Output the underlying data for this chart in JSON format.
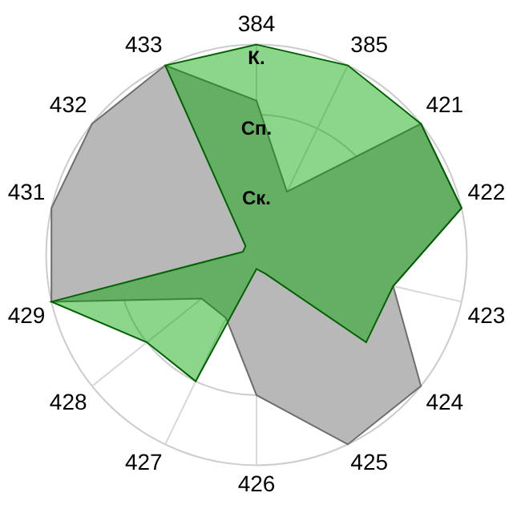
{
  "chart_data": {
    "type": "radar",
    "categories": [
      "384",
      "385",
      "421",
      "422",
      "423",
      "424",
      "425",
      "426",
      "427",
      "428",
      "429",
      "431",
      "432",
      "433"
    ],
    "series": [
      {
        "color": "#b8b8b8",
        "values": [
          2.2,
          1,
          3,
          3,
          2,
          3,
          3,
          2,
          1,
          1,
          3,
          3,
          3,
          3
        ]
      },
      {
        "color": "#00a400",
        "values": [
          3,
          3,
          3,
          3,
          2,
          2,
          0.3,
          0.2,
          2,
          2,
          3,
          0.2,
          0.2,
          3
        ]
      }
    ],
    "ylim": [
      0,
      3
    ],
    "yticks": [
      {
        "value": 1,
        "label": "Ск."
      },
      {
        "value": 2,
        "label": "Сп."
      },
      {
        "value": 3,
        "label": "К."
      }
    ],
    "grid": true,
    "legend": false
  }
}
